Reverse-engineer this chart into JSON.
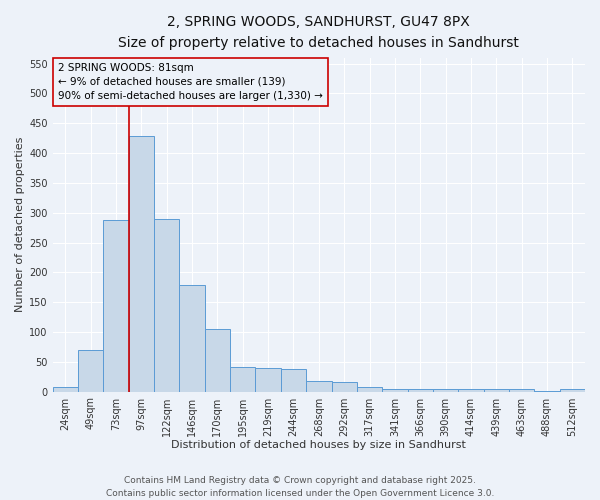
{
  "title_line1": "2, SPRING WOODS, SANDHURST, GU47 8PX",
  "title_line2": "Size of property relative to detached houses in Sandhurst",
  "xlabel": "Distribution of detached houses by size in Sandhurst",
  "ylabel": "Number of detached properties",
  "categories": [
    "24sqm",
    "49sqm",
    "73sqm",
    "97sqm",
    "122sqm",
    "146sqm",
    "170sqm",
    "195sqm",
    "219sqm",
    "244sqm",
    "268sqm",
    "292sqm",
    "317sqm",
    "341sqm",
    "366sqm",
    "390sqm",
    "414sqm",
    "439sqm",
    "463sqm",
    "488sqm",
    "512sqm"
  ],
  "values": [
    7,
    70,
    287,
    428,
    290,
    178,
    105,
    42,
    40,
    38,
    18,
    16,
    7,
    4,
    4,
    4,
    4,
    4,
    4,
    1,
    4
  ],
  "bar_color": "#c8d8e8",
  "bar_edge_color": "#5b9bd5",
  "vline_color": "#cc0000",
  "vline_x": 2.5,
  "annotation_text": "2 SPRING WOODS: 81sqm\n← 9% of detached houses are smaller (139)\n90% of semi-detached houses are larger (1,330) →",
  "annotation_box_edgecolor": "#cc0000",
  "background_color": "#edf2f9",
  "grid_color": "#ffffff",
  "ylim": [
    0,
    560
  ],
  "yticks": [
    0,
    50,
    100,
    150,
    200,
    250,
    300,
    350,
    400,
    450,
    500,
    550
  ],
  "footer_line1": "Contains HM Land Registry data © Crown copyright and database right 2025.",
  "footer_line2": "Contains public sector information licensed under the Open Government Licence 3.0.",
  "title_fontsize": 10,
  "subtitle_fontsize": 9,
  "axis_label_fontsize": 8,
  "tick_fontsize": 7,
  "annotation_fontsize": 7.5,
  "footer_fontsize": 6.5
}
